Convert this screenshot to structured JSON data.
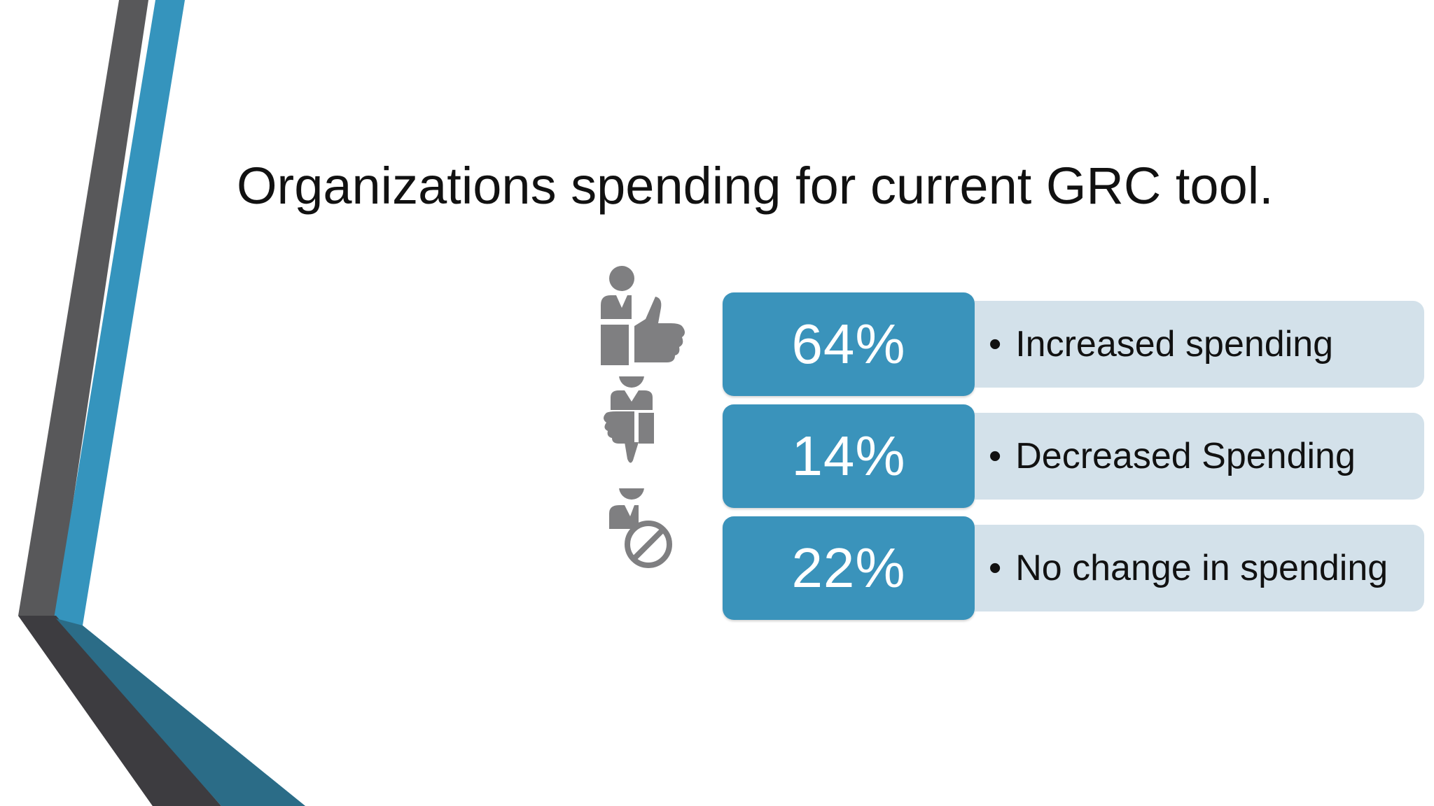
{
  "slide": {
    "title": "Organizations spending for current GRC tool."
  },
  "stats": [
    {
      "percent": "64%",
      "label": "Increased spending",
      "icon": "person-thumbs-up-icon"
    },
    {
      "percent": "14%",
      "label": "Decreased Spending",
      "icon": "person-thumbs-down-icon"
    },
    {
      "percent": "22%",
      "label": "No change in spending",
      "icon": "person-no-change-icon"
    }
  ],
  "colors": {
    "accent_blue": "#3a93bb",
    "label_background": "#d3e1ea",
    "icon_gray": "#7f7f81",
    "dark_gray": "#555557"
  }
}
